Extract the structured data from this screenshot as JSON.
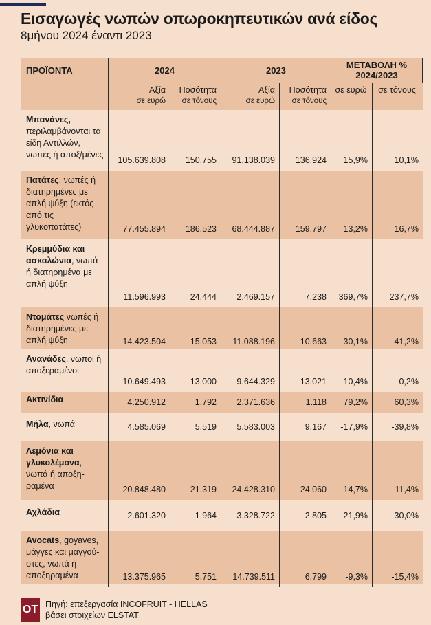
{
  "title": "Εισαγωγές νωπών οπωροκηπευτικών ανά είδος",
  "subtitle": "8μήνου 2024  έναντι 2023",
  "colors": {
    "background": "#f6e0cd",
    "shaded_row": "#eac2a3",
    "logo": "#8a1c2b",
    "accent_line": "#1e2a5a"
  },
  "header": {
    "products": "ΠΡΟΪΟΝΤΑ",
    "y2024": "2024",
    "y2023": "2023",
    "change": "ΜΕΤΑΒΟΛΗ % 2024/2023",
    "value": "Αξία",
    "value_unit": "σε ευρώ",
    "qty": "Ποσότητα",
    "qty_unit": "σε τόνους",
    "pct_eur": "σε ευρώ",
    "pct_tons": "σε τόνους"
  },
  "rows": [
    {
      "bold": "Μπανάνες,",
      "rest": " περιλαμβάνονται τα είδη Αντιλλών, νωπές ή αποξ/μένες",
      "v2024": "105.639.808",
      "q2024": "150.755",
      "v2023": "91.138.039",
      "q2023": "136.924",
      "pe": "15,9%",
      "pt": "10,1%"
    },
    {
      "bold": "Πατάτες",
      "rest": ", νωπές ή διατηρημένες με απλή ψύξη (εκτός από τις γλυκοπατάτες)",
      "v2024": "77.455.894",
      "q2024": "186.523",
      "v2023": "68.444.887",
      "q2023": "159.797",
      "pe": "13,2%",
      "pt": "16,7%"
    },
    {
      "bold": "Κρεμμύδια και ασκαλώνια",
      "rest": ", νωπά ή διατηρημένα με απλή ψύξη",
      "v2024": "11.596.993",
      "q2024": "24.444",
      "v2023": "2.469.157",
      "q2023": "7.238",
      "pe": "369,7%",
      "pt": "237,7%"
    },
    {
      "bold": "Ντομάτες",
      "rest": " νωπές ή διατηρημένες με απλή ψύξη",
      "v2024": "14.423.504",
      "q2024": "15.053",
      "v2023": "11.088.196",
      "q2023": "10.663",
      "pe": "30,1%",
      "pt": "41,2%"
    },
    {
      "bold": "Ανανάδες",
      "rest": ", νωποί ή αποξεραμένοι",
      "v2024": "10.649.493",
      "q2024": "13.000",
      "v2023": "9.644.329",
      "q2023": "13.021",
      "pe": "10,4%",
      "pt": "-0,2%"
    },
    {
      "bold": "Ακτινίδια",
      "rest": "",
      "v2024": "4.250.912",
      "q2024": "1.792",
      "v2023": "2.371.636",
      "q2023": "1.118",
      "pe": "79,2%",
      "pt": "60,3%"
    },
    {
      "bold": "Μήλα",
      "rest": ", νωπά",
      "v2024": "4.585.069",
      "q2024": "5.519",
      "v2023": "5.583.003",
      "q2023": "9.167",
      "pe": "-17,9%",
      "pt": "-39,8%"
    },
    {
      "bold": "Λεμόνια και γλυκολέμονα",
      "rest": ", νωπά ή αποξη-ραμένα",
      "v2024": "20.848.480",
      "q2024": "21.319",
      "v2023": "24.428.310",
      "q2023": "24.060",
      "pe": "-14,7%",
      "pt": "-11,4%"
    },
    {
      "bold": "Αχλάδια",
      "rest": "",
      "v2024": "2.601.320",
      "q2024": "1.964",
      "v2023": "3.328.722",
      "q2023": "2.805",
      "pe": "-21,9%",
      "pt": "-30,0%"
    },
    {
      "bold": "Avocats",
      "rest": ", goyaves, μάγγες και μαγγού-στες, νωπά ή αποξηραμένα",
      "v2024": "13.375.965",
      "q2024": "5.751",
      "v2023": "14.739.511",
      "q2023": "6.799",
      "pe": "-9,3%",
      "pt": "-15,4%"
    }
  ],
  "source": {
    "logo": "OT",
    "line1": "Πηγή: επεξεργασία INCOFRUIT - HELLAS",
    "line2": "βάσει στοιχείων ELSTAT"
  }
}
